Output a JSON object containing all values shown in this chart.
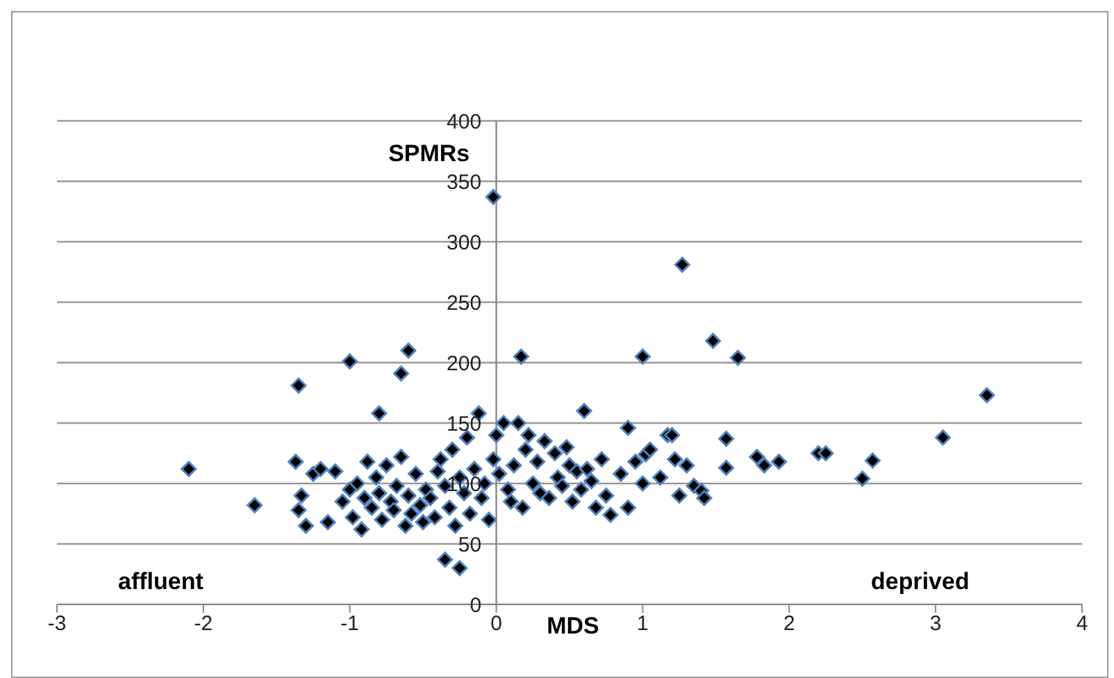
{
  "chart_data": {
    "type": "scatter",
    "xlabel": "MDS",
    "ylabel": "SPMRs",
    "annotations": [
      "affluent",
      "deprived"
    ],
    "xlim": [
      -3,
      4
    ],
    "xticks": [
      -3,
      -2,
      -1,
      0,
      1,
      2,
      3,
      4
    ],
    "ylim": [
      0,
      400
    ],
    "yticks": [
      0,
      50,
      100,
      150,
      200,
      250,
      300,
      350,
      400
    ],
    "grid": "y",
    "marker": "diamond",
    "series": [
      {
        "color": "#000000",
        "x": [
          -2.1,
          -1.65,
          -1.35,
          -1.37,
          -1.0,
          -0.65,
          -0.6,
          -0.8,
          -0.02,
          0.17,
          1.0,
          1.27,
          1.48,
          1.65,
          3.35,
          3.05,
          2.5,
          2.57,
          2.2,
          2.25,
          1.93,
          1.83,
          1.78,
          1.57,
          1.57,
          0.6,
          0.9,
          -0.35,
          -0.25,
          -1.35,
          -1.33,
          -1.3,
          -1.25,
          -1.2,
          -1.15,
          -1.1,
          -1.05,
          -1.0,
          -0.98,
          -0.95,
          -0.92,
          -0.9,
          -0.88,
          -0.85,
          -0.82,
          -0.8,
          -0.78,
          -0.75,
          -0.72,
          -0.7,
          -0.68,
          -0.65,
          -0.62,
          -0.6,
          -0.58,
          -0.55,
          -0.52,
          -0.5,
          -0.48,
          -0.45,
          -0.42,
          -0.4,
          -0.38,
          -0.35,
          -0.32,
          -0.3,
          -0.28,
          -0.25,
          -0.22,
          -0.2,
          -0.18,
          -0.15,
          -0.12,
          -0.1,
          -0.08,
          -0.05,
          -0.02,
          0,
          0.02,
          0.05,
          0.08,
          0.1,
          0.12,
          0.15,
          0.18,
          0.2,
          0.22,
          0.25,
          0.28,
          0.3,
          0.33,
          0.36,
          0.4,
          0.42,
          0.45,
          0.48,
          0.5,
          0.52,
          0.55,
          0.58,
          0.62,
          0.65,
          0.68,
          0.72,
          0.75,
          0.78,
          0.85,
          0.9,
          0.95,
          1.0,
          1.02,
          1.05,
          1.12,
          1.17,
          1.2,
          1.22,
          1.25,
          1.3,
          1.35,
          1.4,
          1.42
        ],
        "values": [
          112,
          82,
          181,
          118,
          201,
          191,
          210,
          158,
          337,
          205,
          205,
          281,
          218,
          204,
          173,
          138,
          104,
          119,
          125,
          125,
          118,
          115,
          122,
          137,
          113,
          160,
          146,
          37,
          30,
          78,
          90,
          65,
          108,
          112,
          68,
          110,
          85,
          95,
          72,
          100,
          62,
          88,
          118,
          80,
          105,
          92,
          70,
          115,
          85,
          78,
          98,
          122,
          65,
          90,
          75,
          108,
          82,
          68,
          95,
          88,
          72,
          110,
          120,
          98,
          80,
          128,
          65,
          105,
          92,
          138,
          75,
          112,
          158,
          88,
          100,
          70,
          120,
          140,
          108,
          150,
          95,
          85,
          115,
          150,
          80,
          128,
          140,
          100,
          118,
          92,
          135,
          88,
          125,
          105,
          98,
          130,
          115,
          85,
          110,
          95,
          112,
          102,
          80,
          120,
          90,
          74,
          108,
          80,
          118,
          100,
          124,
          128,
          105,
          140,
          140,
          120,
          90,
          115,
          98,
          94,
          88
        ]
      }
    ]
  }
}
